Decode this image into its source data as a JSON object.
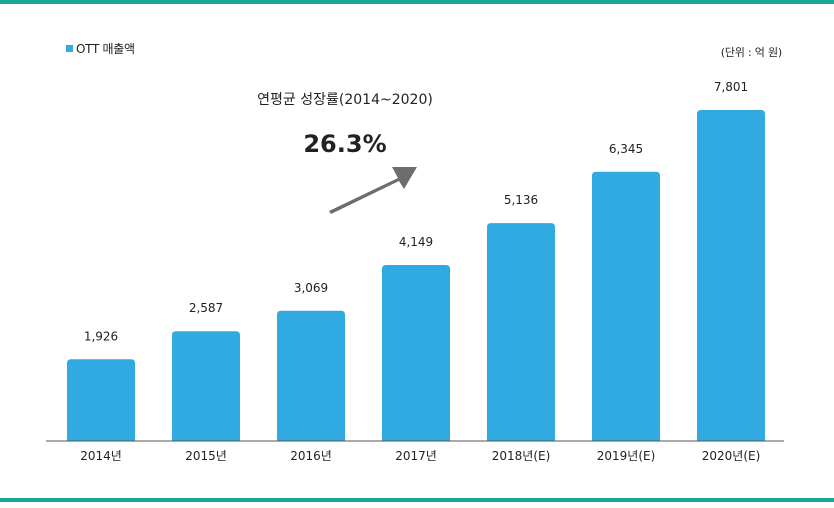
{
  "colors": {
    "accent": "#1aa79a",
    "bar": "#30aae0",
    "arrow": "#6d6d6d",
    "text": "#222222",
    "axis": "#555555"
  },
  "legend": {
    "label": "OTT 매출액",
    "icon": "square-marker-icon"
  },
  "unit_note": "(단위 : 억 원)",
  "callout": {
    "label": "연평균 성장률(2014~2020)",
    "value": "26.3%",
    "icon": "arrow-up-right-icon"
  },
  "chart_data": {
    "type": "bar",
    "categories": [
      "2014년",
      "2015년",
      "2016년",
      "2017년",
      "2018년(E)",
      "2019년(E)",
      "2020년(E)"
    ],
    "values": [
      1926,
      2587,
      3069,
      4149,
      5136,
      6345,
      7801
    ],
    "value_labels": [
      "1,926",
      "2,587",
      "3,069",
      "4,149",
      "5,136",
      "6,345",
      "7,801"
    ],
    "series": [
      {
        "name": "OTT 매출액",
        "values": [
          1926,
          2587,
          3069,
          4149,
          5136,
          6345,
          7801
        ]
      }
    ],
    "ylim": [
      0,
      8000
    ],
    "grid": false,
    "legend_position": "top-left"
  }
}
